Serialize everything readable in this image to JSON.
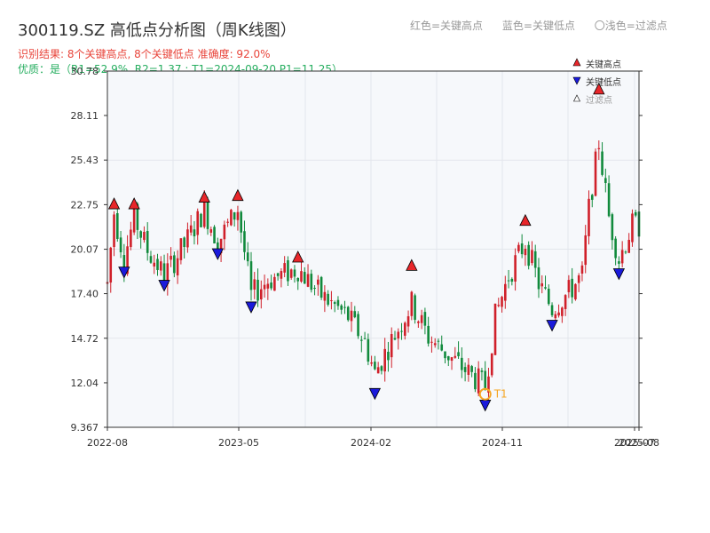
{
  "header": {
    "title": "300119.SZ 高低点分析图（周K线图）",
    "legend_red": "红色=关键高点",
    "legend_blue": "蓝色=关键低点",
    "legend_filtered": "〇浅色=过滤点",
    "result": "识别结果: 8个关键高点, 8个关键低点  准确度: 92.0%",
    "quality": "优质：是（R1=52.9%, R2=1.37 ; T1=2024-09-20 P1=11.25）"
  },
  "legend": {
    "high": "关键高点",
    "low": "关键低点",
    "filtered": "过滤点"
  },
  "colors": {
    "up": "#d0202a",
    "down": "#118a3c",
    "high_marker": "#e8262a",
    "low_marker": "#1a1adb",
    "t1_marker": "#f5a623",
    "plot_bg": "#f6f8fb"
  },
  "chart_data": {
    "type": "candlestick",
    "period": "weekly",
    "ylim": [
      9.367,
      30.78
    ],
    "yticks": [
      "9.367",
      "12.04",
      "14.72",
      "17.40",
      "20.07",
      "22.75",
      "25.43",
      "28.11",
      "30.78"
    ],
    "xticks": [
      "2022-08",
      "2023-05",
      "2024-02",
      "2024-11",
      "2025-07",
      "2025-08"
    ],
    "x_range": [
      "2022-07-22",
      "2025-08-08"
    ],
    "t1_label": "T1",
    "t1": {
      "date": "2024-09-20",
      "price": 11.25
    },
    "key_highs": [
      {
        "date": "2022-08-05",
        "price": 22.5
      },
      {
        "date": "2022-09-16",
        "price": 22.5
      },
      {
        "date": "2023-02-10",
        "price": 22.9
      },
      {
        "date": "2023-04-21",
        "price": 23.0
      },
      {
        "date": "2023-08-25",
        "price": 19.3
      },
      {
        "date": "2024-04-19",
        "price": 18.8
      },
      {
        "date": "2024-12-13",
        "price": 21.5
      },
      {
        "date": "2025-05-16",
        "price": 29.4
      }
    ],
    "key_lows": [
      {
        "date": "2022-08-26",
        "price": 19.0
      },
      {
        "date": "2022-11-18",
        "price": 18.2
      },
      {
        "date": "2023-03-10",
        "price": 20.1
      },
      {
        "date": "2023-05-19",
        "price": 16.9
      },
      {
        "date": "2024-02-02",
        "price": 11.7
      },
      {
        "date": "2024-09-20",
        "price": 11.0
      },
      {
        "date": "2025-02-07",
        "price": 15.8
      },
      {
        "date": "2025-06-27",
        "price": 18.9
      }
    ],
    "price_path": [
      [
        "2022-07-22",
        18.0
      ],
      [
        "2022-08-05",
        22.3
      ],
      [
        "2022-08-26",
        19.5
      ],
      [
        "2022-09-16",
        22.0
      ],
      [
        "2022-10-14",
        20.0
      ],
      [
        "2022-11-18",
        18.5
      ],
      [
        "2022-12-30",
        20.3
      ],
      [
        "2023-02-10",
        22.5
      ],
      [
        "2023-03-10",
        20.5
      ],
      [
        "2023-04-21",
        22.5
      ],
      [
        "2023-05-19",
        17.3
      ],
      [
        "2023-06-23",
        18.2
      ],
      [
        "2023-08-25",
        18.9
      ],
      [
        "2023-10-13",
        17.3
      ],
      [
        "2023-12-08",
        16.0
      ],
      [
        "2024-01-12",
        14.5
      ],
      [
        "2024-02-02",
        12.6
      ],
      [
        "2024-03-01",
        14.2
      ],
      [
        "2024-04-19",
        16.8
      ],
      [
        "2024-05-24",
        14.8
      ],
      [
        "2024-07-12",
        13.5
      ],
      [
        "2024-09-20",
        11.8
      ],
      [
        "2024-10-11",
        16.0
      ],
      [
        "2024-11-08",
        18.5
      ],
      [
        "2024-12-13",
        20.5
      ],
      [
        "2025-01-10",
        18.0
      ],
      [
        "2025-02-07",
        16.5
      ],
      [
        "2025-03-14",
        17.5
      ],
      [
        "2025-04-11",
        18.5
      ],
      [
        "2025-04-25",
        22.5
      ],
      [
        "2025-05-16",
        26.5
      ],
      [
        "2025-06-06",
        22.0
      ],
      [
        "2025-06-27",
        19.5
      ],
      [
        "2025-07-25",
        21.5
      ],
      [
        "2025-08-08",
        21.5
      ]
    ]
  }
}
